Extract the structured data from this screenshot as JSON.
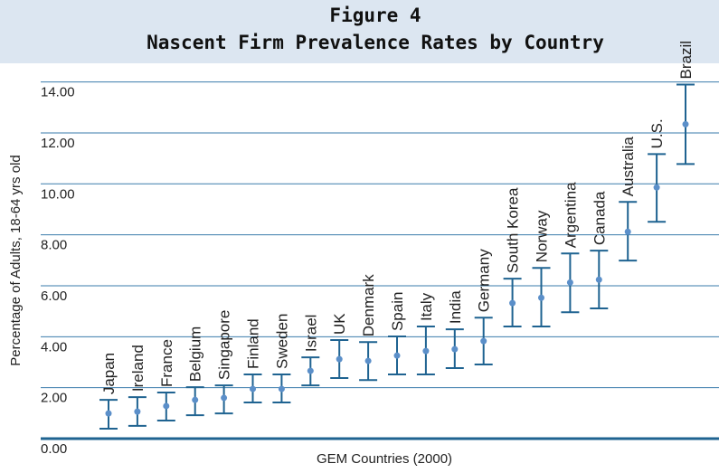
{
  "chart_data": {
    "type": "errorbar",
    "title": "Figure 4",
    "subtitle": "Nascent Firm Prevalence Rates by Country",
    "x_label": "GEM Countries (2000)",
    "y_label": "Percentage of Adults, 18-64 yrs old",
    "categories": [
      "Japan",
      "Ireland",
      "France",
      "Belgium",
      "Singapore",
      "Finland",
      "Sweden",
      "Israel",
      "UK",
      "Denmark",
      "Spain",
      "Italy",
      "India",
      "Germany",
      "South Korea",
      "Norway",
      "Argentina",
      "Canada",
      "Australia",
      "U.S.",
      "Brazil"
    ],
    "series": [
      {
        "name": "Nascent firm prevalence",
        "color": "#5b8fc9",
        "bar_color": "#1f6391",
        "values": [
          0.99,
          1.06,
          1.28,
          1.52,
          1.6,
          1.95,
          1.95,
          2.66,
          3.12,
          3.05,
          3.26,
          3.44,
          3.51,
          3.83,
          5.32,
          5.53,
          6.13,
          6.24,
          8.12,
          9.86,
          12.34
        ],
        "low": [
          0.39,
          0.5,
          0.71,
          0.92,
          0.99,
          1.42,
          1.42,
          2.09,
          2.38,
          2.3,
          2.52,
          2.52,
          2.77,
          2.91,
          4.4,
          4.4,
          4.96,
          5.11,
          6.99,
          8.51,
          10.78
        ],
        "high": [
          1.52,
          1.63,
          1.81,
          2.02,
          2.09,
          2.52,
          2.52,
          3.19,
          3.87,
          3.79,
          4.01,
          4.4,
          4.29,
          4.75,
          6.28,
          6.7,
          7.27,
          7.38,
          9.29,
          11.17,
          13.9
        ]
      }
    ],
    "ylim": [
      0,
      14.2
    ],
    "yticks": [
      {
        "value": 0,
        "label": "0.00"
      },
      {
        "value": 2,
        "label": "2.00"
      },
      {
        "value": 4,
        "label": "4.00"
      },
      {
        "value": 6,
        "label": "6.00"
      },
      {
        "value": 8,
        "label": "8.00"
      },
      {
        "value": 10,
        "label": "10.00"
      },
      {
        "value": 12,
        "label": "12.00"
      },
      {
        "value": 14,
        "label": "14.00"
      }
    ],
    "grid": true
  }
}
